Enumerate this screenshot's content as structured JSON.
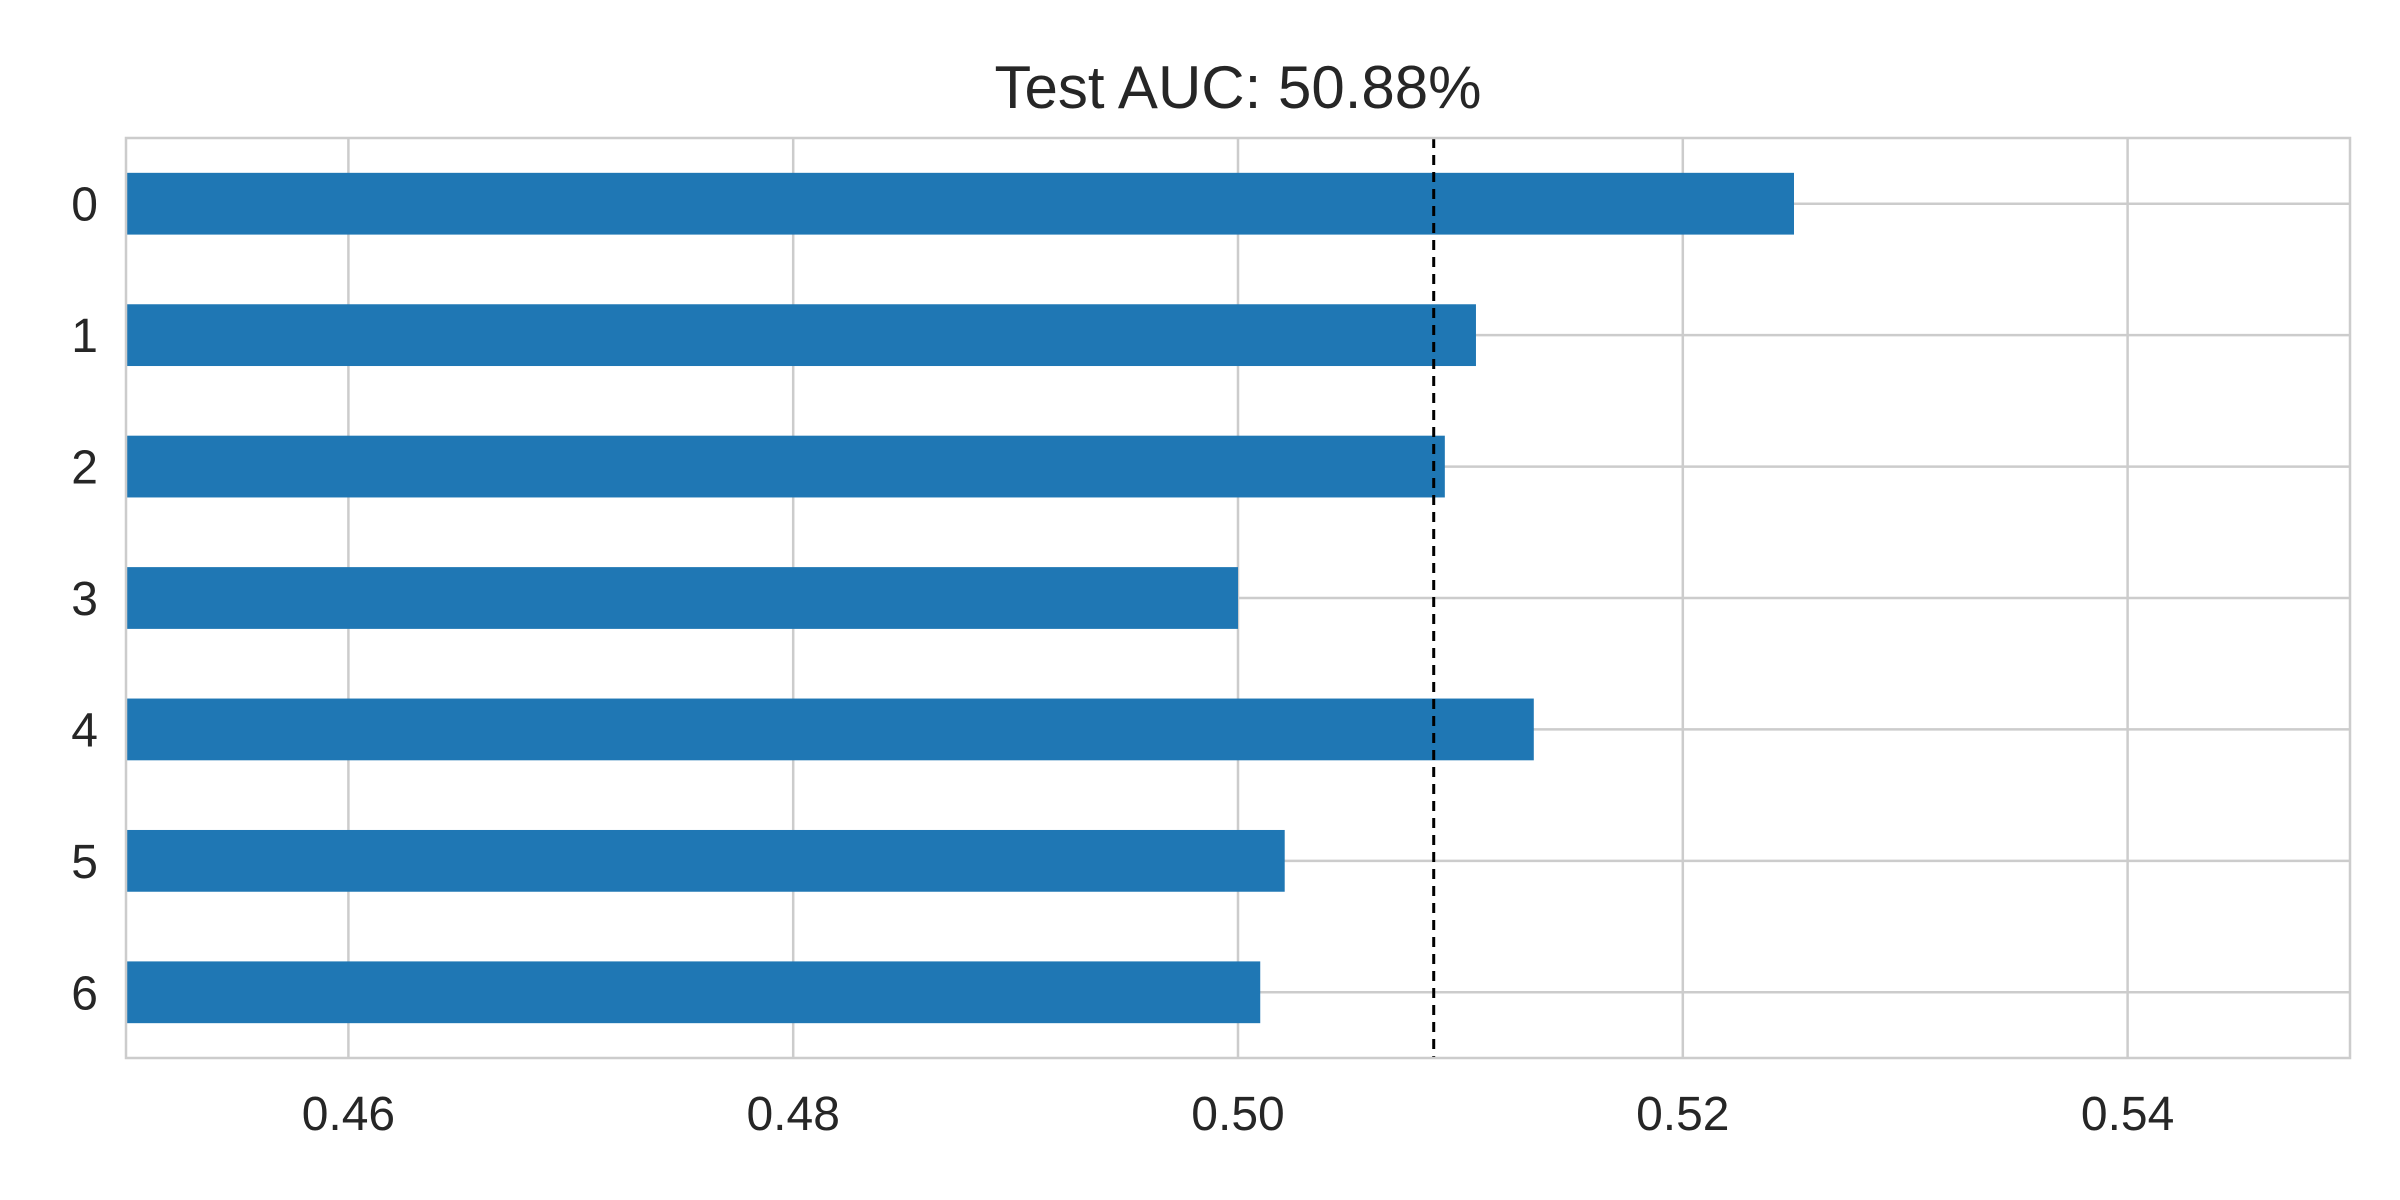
{
  "chart_data": {
    "type": "bar",
    "orientation": "horizontal",
    "title": "Test AUC: 50.88%",
    "xlabel": "",
    "ylabel": "",
    "categories": [
      "0",
      "1",
      "2",
      "3",
      "4",
      "5",
      "6"
    ],
    "values": [
      0.525,
      0.5107,
      0.5093,
      0.5,
      0.5133,
      0.5021,
      0.501
    ],
    "xlim": [
      0.45,
      0.55
    ],
    "xticks": [
      0.46,
      0.48,
      0.5,
      0.52,
      0.54
    ],
    "xtick_labels": [
      "0.46",
      "0.48",
      "0.50",
      "0.52",
      "0.54"
    ],
    "reference_line": {
      "x": 0.5088,
      "style": "dashed",
      "color": "#000000"
    },
    "grid": true,
    "bar_color": "#1f77b4",
    "grid_color": "#cccccc",
    "category_order": "top-to-bottom"
  }
}
